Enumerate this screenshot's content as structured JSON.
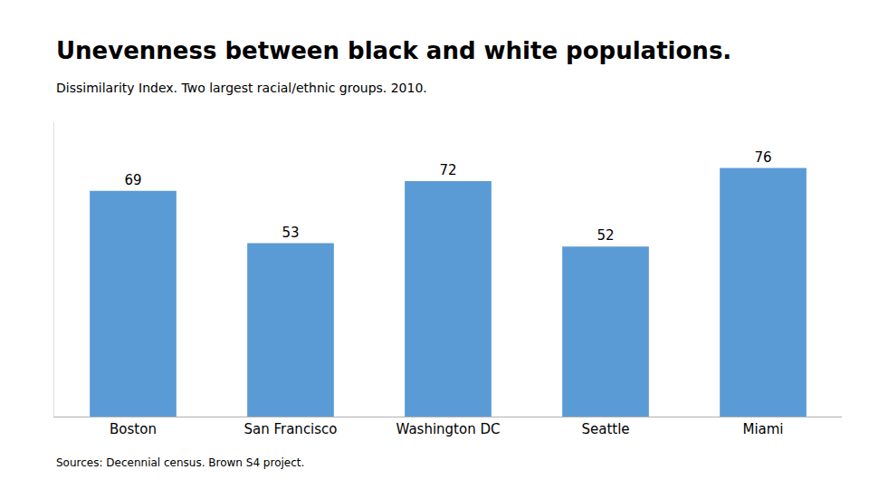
{
  "chart_data": {
    "type": "bar",
    "title": "Unevenness between black and white populations.",
    "subtitle": "Dissimilarity Index. Two largest racial/ethnic groups. 2010.",
    "source": "Sources: Decennial census. Brown S4 project.",
    "categories": [
      "Boston",
      "San Francisco",
      "Washington DC",
      "Seattle",
      "Miami"
    ],
    "values": [
      69,
      53,
      72,
      52,
      76
    ],
    "color": "#5b9bd5",
    "ylim": [
      0,
      90
    ],
    "grid": false,
    "data_labels": true,
    "tick_labels": "x"
  }
}
